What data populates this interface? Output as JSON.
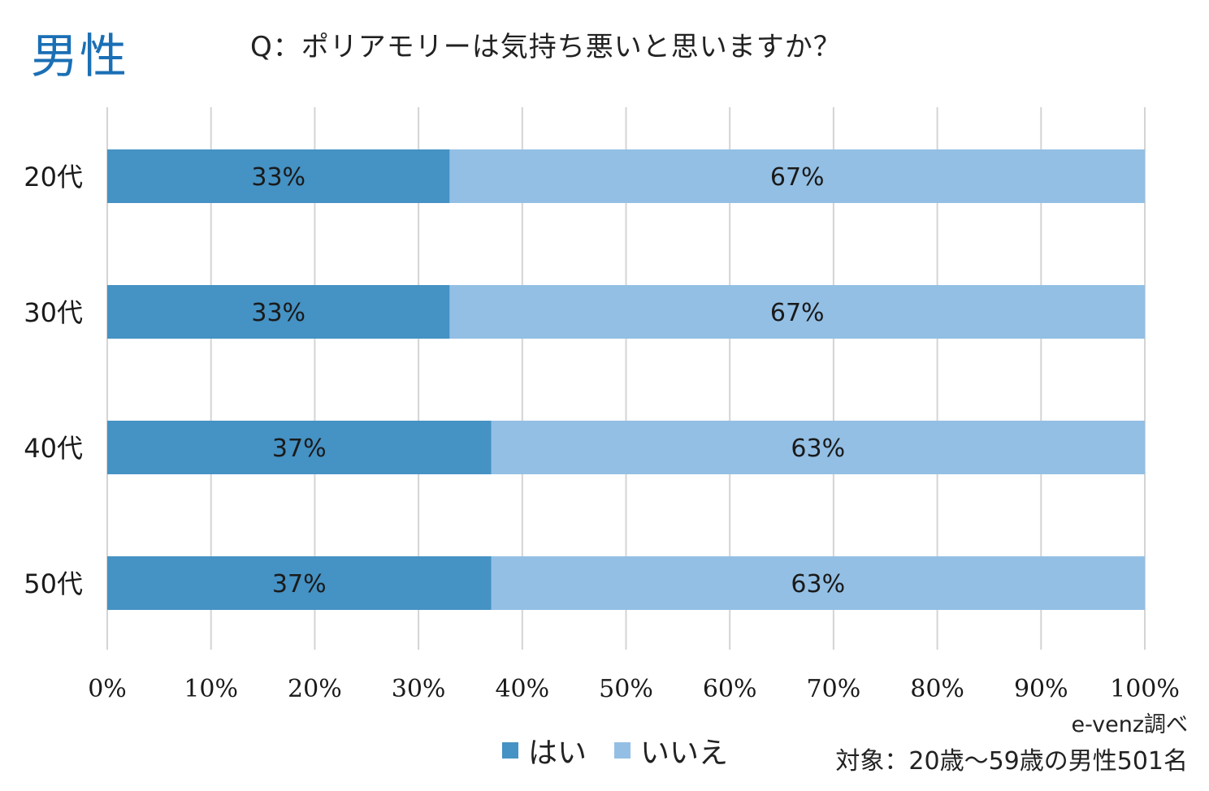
{
  "header": {
    "gender": "男性",
    "question": "Q：ポリアモリーは気持ち悪いと思いますか？"
  },
  "chart_data": {
    "type": "bar",
    "orientation": "horizontal",
    "stacked": true,
    "categories": [
      "20代",
      "30代",
      "40代",
      "50代"
    ],
    "series": [
      {
        "name": "はい",
        "values": [
          33,
          33,
          37,
          37
        ],
        "labels": [
          "33%",
          "33%",
          "37%",
          "37%"
        ],
        "color": "#4592c4"
      },
      {
        "name": "いいえ",
        "values": [
          67,
          67,
          63,
          63
        ],
        "labels": [
          "67%",
          "67%",
          "63%",
          "63%"
        ],
        "color": "#93bfe4"
      }
    ],
    "xlim": [
      0,
      100
    ],
    "x_ticks": [
      "0%",
      "10%",
      "20%",
      "30%",
      "40%",
      "50%",
      "60%",
      "70%",
      "80%",
      "90%",
      "100%"
    ],
    "grid": true,
    "legend": "bottom"
  },
  "footer": {
    "source": "e-venz調べ",
    "target": "対象：20歳～59歳の男性501名"
  }
}
